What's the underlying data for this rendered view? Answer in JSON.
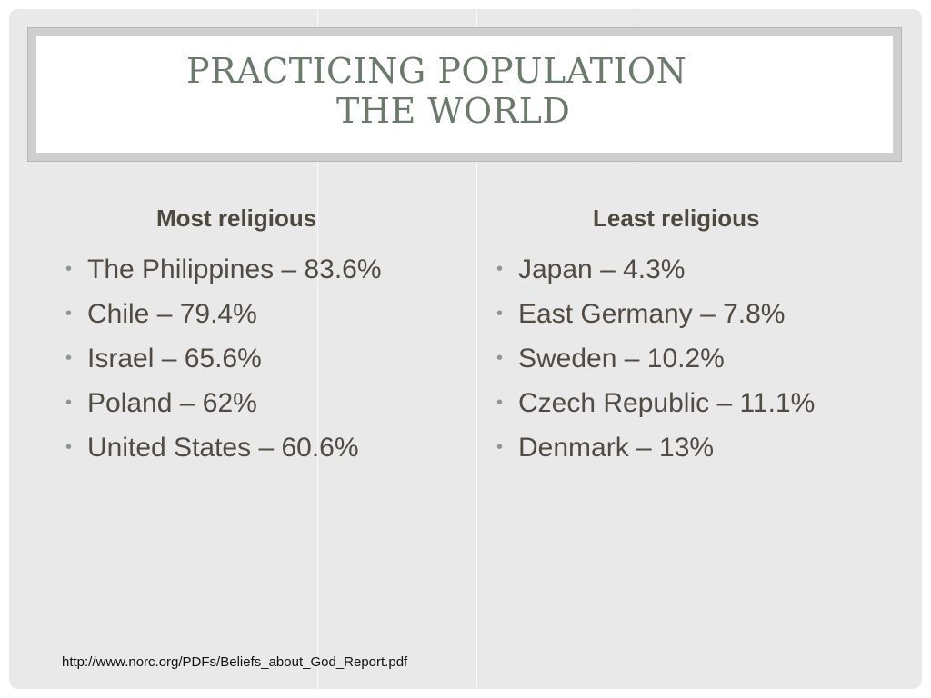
{
  "slide": {
    "title_line1": "PRACTICING POPULATION",
    "title_line2": "THE WORLD",
    "left_column": {
      "heading": "Most religious",
      "items": [
        "The Philippines – 83.6%",
        "Chile – 79.4%",
        "Israel – 65.6%",
        "Poland – 62%",
        "United States – 60.6%"
      ]
    },
    "right_column": {
      "heading": "Least religious",
      "items": [
        "Japan – 4.3%",
        "East Germany – 7.8%",
        "Sweden – 10.2%",
        "Czech Republic – 11.1%",
        "Denmark – 13%"
      ]
    },
    "source": "http://www.norc.org/PDFs/Beliefs_about_God_Report.pdf"
  },
  "colors": {
    "title": "#6a7a6b",
    "body_text": "#514b42",
    "slide_background": "#e9e9e9",
    "bullet": "#8f9599"
  }
}
